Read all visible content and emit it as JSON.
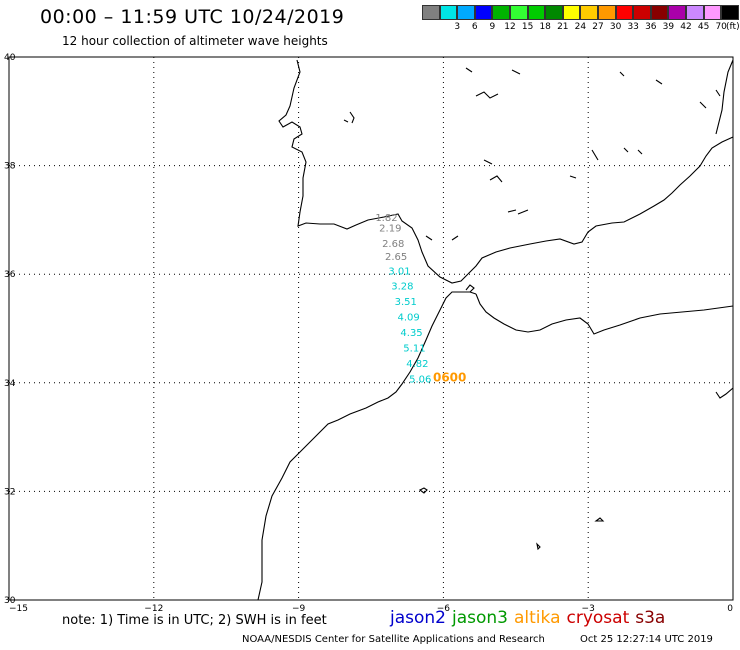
{
  "header": {
    "title": "00:00 – 11:59 UTC 10/24/2019",
    "subtitle": "12 hour collection of altimeter wave heights"
  },
  "legend": {
    "unit": "(ft)",
    "swatches": [
      {
        "color": "#808080",
        "label": ""
      },
      {
        "color": "#00e6e6",
        "label": "3"
      },
      {
        "color": "#00aaff",
        "label": "6"
      },
      {
        "color": "#0000ff",
        "label": "9"
      },
      {
        "color": "#00b300",
        "label": "12"
      },
      {
        "color": "#33ff33",
        "label": "15"
      },
      {
        "color": "#00cc00",
        "label": "18"
      },
      {
        "color": "#008800",
        "label": "21"
      },
      {
        "color": "#ffff00",
        "label": "24"
      },
      {
        "color": "#ffcc00",
        "label": "27"
      },
      {
        "color": "#ff9900",
        "label": "30"
      },
      {
        "color": "#ff0000",
        "label": "33"
      },
      {
        "color": "#cc0000",
        "label": "36"
      },
      {
        "color": "#880000",
        "label": "39"
      },
      {
        "color": "#aa00aa",
        "label": "42"
      },
      {
        "color": "#cc88ff",
        "label": "45"
      },
      {
        "color": "#ff99ff",
        "label": "70"
      },
      {
        "color": "#000000",
        "label": ""
      }
    ]
  },
  "map": {
    "lon_ticks": [
      "−15",
      "−12",
      "−9",
      "−6",
      "−3",
      "0"
    ],
    "lat_ticks": [
      "40",
      "38",
      "36",
      "34",
      "32",
      "30"
    ],
    "observations": [
      {
        "value": "1.82",
        "color": "#808080",
        "lon": -7.18,
        "lat": 36.98
      },
      {
        "value": "2.19",
        "color": "#808080",
        "lon": -7.1,
        "lat": 36.79
      },
      {
        "value": "2.68",
        "color": "#808080",
        "lon": -7.04,
        "lat": 36.5
      },
      {
        "value": "2.65",
        "color": "#808080",
        "lon": -6.98,
        "lat": 36.26
      },
      {
        "value": "3.01",
        "color": "#00cccc",
        "lon": -6.91,
        "lat": 35.99
      },
      {
        "value": "3.28",
        "color": "#00cccc",
        "lon": -6.85,
        "lat": 35.72
      },
      {
        "value": "3.51",
        "color": "#00cccc",
        "lon": -6.78,
        "lat": 35.43
      },
      {
        "value": "4.09",
        "color": "#00cccc",
        "lon": -6.72,
        "lat": 35.15
      },
      {
        "value": "4.35",
        "color": "#00cccc",
        "lon": -6.66,
        "lat": 34.86
      },
      {
        "value": "5.11",
        "color": "#00cccc",
        "lon": -6.6,
        "lat": 34.58
      },
      {
        "value": "4.82",
        "color": "#00cccc",
        "lon": -6.54,
        "lat": 34.29
      },
      {
        "value": "5.06",
        "color": "#00cccc",
        "lon": -6.48,
        "lat": 34.01
      }
    ],
    "time_label": {
      "text": "0600",
      "color": "#ff9900",
      "lon": -5.87,
      "lat": 34.02
    }
  },
  "footer": {
    "note": "note: 1) Time is in UTC; 2) SWH is in feet",
    "satellites": [
      {
        "name": "jason2",
        "color": "#0000cc"
      },
      {
        "name": "jason3",
        "color": "#009900"
      },
      {
        "name": "altika",
        "color": "#ff9900"
      },
      {
        "name": "cryosat",
        "color": "#cc0000"
      },
      {
        "name": "s3a",
        "color": "#880000"
      }
    ],
    "credit": "NOAA/NESDIS Center for Satellite Applications and Research",
    "timestamp": "Oct 25 12:27:14 UTC 2019"
  }
}
